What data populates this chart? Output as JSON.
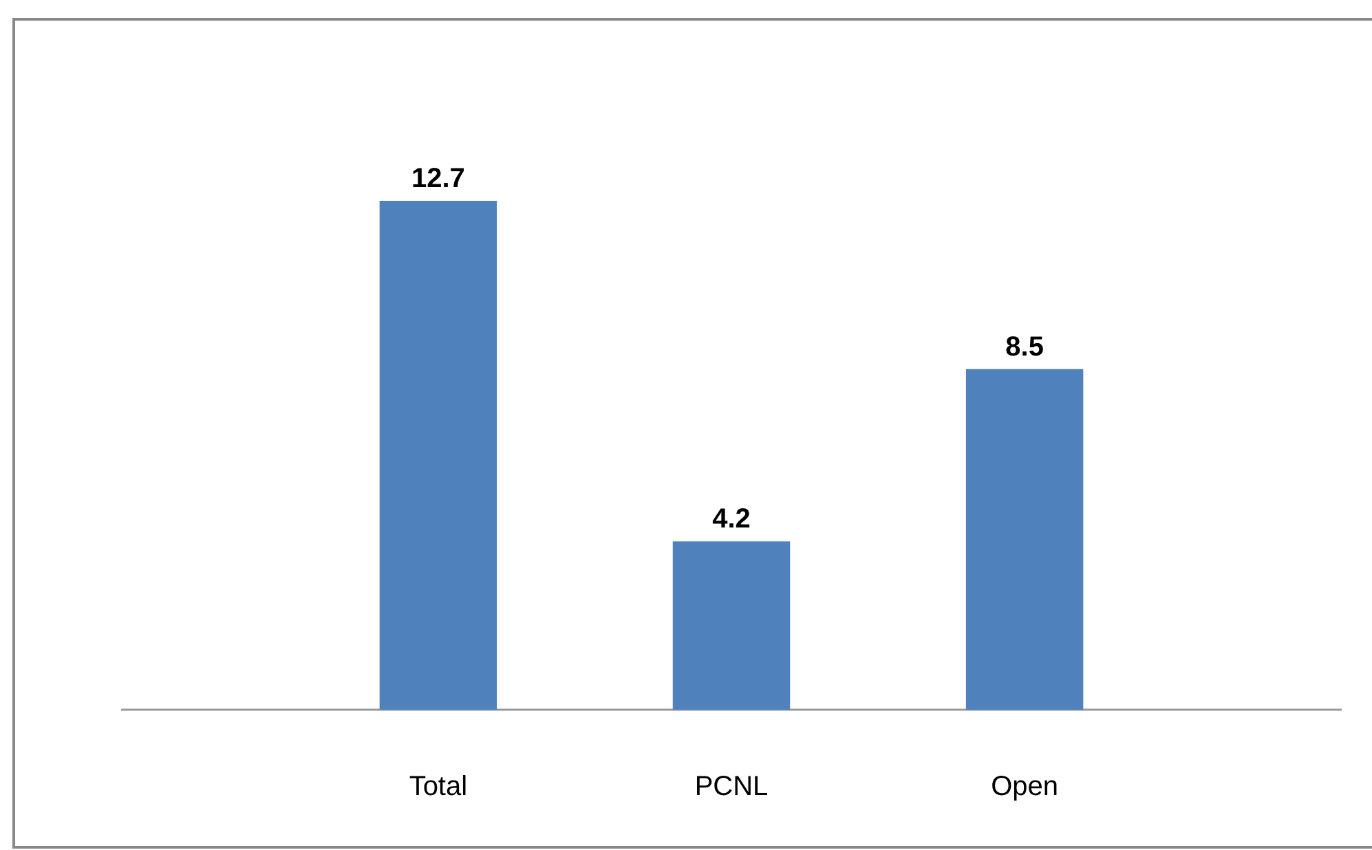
{
  "chart_data": {
    "type": "bar",
    "categories": [
      "Total",
      "PCNL",
      "Open"
    ],
    "values": [
      12.7,
      4.2,
      8.5
    ],
    "color": "#4f81bd",
    "data_labels": true
  }
}
